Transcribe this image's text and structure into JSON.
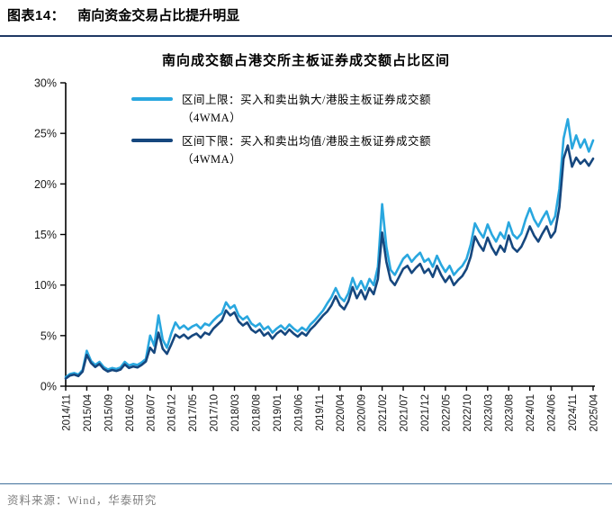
{
  "header": {
    "label": "图表14：",
    "title": "南向资金交易占比提升明显"
  },
  "footer": {
    "source": "资料来源：Wind，华泰研究"
  },
  "colors": {
    "header_rule": "#1F3864",
    "footer_rule": "#41719C",
    "upper_line": "#29A7DF",
    "lower_line": "#16477E",
    "axis": "#000000"
  },
  "chart_data": {
    "type": "line",
    "title": "南向成交额占港交所主板证券成交额占比区间",
    "xlabel": "",
    "ylabel": "",
    "grid": false,
    "legend_position": "top-left",
    "ylim": [
      0,
      30
    ],
    "y_ticks": [
      "0%",
      "5%",
      "10%",
      "15%",
      "20%",
      "25%",
      "30%"
    ],
    "x_unit": "months_since_2014_11",
    "x_tick_step_months": 5,
    "x_tick_labels": [
      "2014/11",
      "2015/04",
      "2015/09",
      "2016/02",
      "2016/07",
      "2016/12",
      "2017/05",
      "2017/10",
      "2018/03",
      "2018/08",
      "2019/01",
      "2019/06",
      "2019/11",
      "2020/04",
      "2020/09",
      "2021/02",
      "2021/07",
      "2021/12",
      "2022/05",
      "2022/10",
      "2023/03",
      "2023/08",
      "2024/01",
      "2024/06",
      "2024/11",
      "2025/04"
    ],
    "series": [
      {
        "name": "区间上限：买入和卖出孰大/港股主板证券成交额（4WMA）",
        "color": "#29A7DF",
        "values": [
          0.9,
          1.2,
          1.3,
          1.15,
          1.6,
          3.5,
          2.5,
          2.1,
          2.4,
          1.9,
          1.65,
          1.8,
          1.7,
          1.85,
          2.4,
          2.05,
          2.2,
          2.1,
          2.35,
          2.7,
          5.0,
          4.0,
          7.0,
          4.6,
          3.8,
          5.2,
          6.3,
          5.7,
          6.0,
          5.6,
          5.9,
          6.1,
          5.7,
          6.2,
          6.0,
          6.5,
          6.9,
          7.2,
          8.3,
          7.7,
          8.0,
          7.0,
          6.6,
          6.9,
          6.2,
          5.9,
          6.2,
          5.6,
          5.9,
          5.3,
          5.7,
          6.0,
          5.6,
          6.1,
          5.7,
          5.4,
          5.8,
          5.5,
          6.1,
          6.5,
          7.0,
          7.5,
          8.2,
          8.8,
          9.7,
          8.8,
          8.4,
          9.2,
          10.7,
          9.6,
          10.4,
          9.5,
          10.6,
          10.0,
          11.8,
          18.0,
          13.8,
          11.5,
          11.0,
          11.8,
          12.6,
          13.0,
          12.3,
          12.8,
          13.2,
          12.3,
          12.6,
          11.8,
          12.9,
          12.0,
          11.3,
          11.9,
          11.0,
          11.5,
          11.9,
          12.6,
          14.0,
          16.1,
          15.3,
          14.7,
          16.0,
          15.0,
          14.3,
          15.2,
          14.6,
          16.2,
          15.0,
          14.6,
          15.1,
          16.5,
          17.6,
          16.5,
          15.8,
          16.6,
          17.3,
          16.0,
          16.8,
          19.5,
          24.5,
          26.4,
          23.5,
          24.8,
          23.6,
          24.4,
          23.2,
          24.3
        ]
      },
      {
        "name": "区间下限：买入和卖出均值/港股主板证券成交额（4WMA）",
        "color": "#16477E",
        "values": [
          0.75,
          1.05,
          1.15,
          1.0,
          1.45,
          3.1,
          2.3,
          1.9,
          2.2,
          1.7,
          1.45,
          1.6,
          1.5,
          1.65,
          2.15,
          1.8,
          1.95,
          1.85,
          2.1,
          2.45,
          3.8,
          3.3,
          5.3,
          3.7,
          3.2,
          4.1,
          5.1,
          4.8,
          5.1,
          4.7,
          5.0,
          5.2,
          4.8,
          5.3,
          5.1,
          5.7,
          6.1,
          6.5,
          7.5,
          7.0,
          7.3,
          6.4,
          6.0,
          6.3,
          5.6,
          5.3,
          5.6,
          5.0,
          5.3,
          4.7,
          5.2,
          5.5,
          5.1,
          5.6,
          5.2,
          4.9,
          5.3,
          5.0,
          5.6,
          6.0,
          6.5,
          7.0,
          7.4,
          8.0,
          8.9,
          8.0,
          7.6,
          8.4,
          9.8,
          8.7,
          9.5,
          8.6,
          9.7,
          9.1,
          10.6,
          15.2,
          12.3,
          10.5,
          10.0,
          10.8,
          11.6,
          11.9,
          11.2,
          11.7,
          12.1,
          11.2,
          11.6,
          10.8,
          11.9,
          11.0,
          10.3,
          10.9,
          10.0,
          10.5,
          10.9,
          11.6,
          12.8,
          14.8,
          14.0,
          13.4,
          14.7,
          13.7,
          13.0,
          13.9,
          13.3,
          14.9,
          13.7,
          13.3,
          13.8,
          14.7,
          15.8,
          14.9,
          14.3,
          15.1,
          15.8,
          14.7,
          15.3,
          17.7,
          22.5,
          23.8,
          21.7,
          22.6,
          22.0,
          22.4,
          21.8,
          22.5
        ]
      }
    ]
  }
}
